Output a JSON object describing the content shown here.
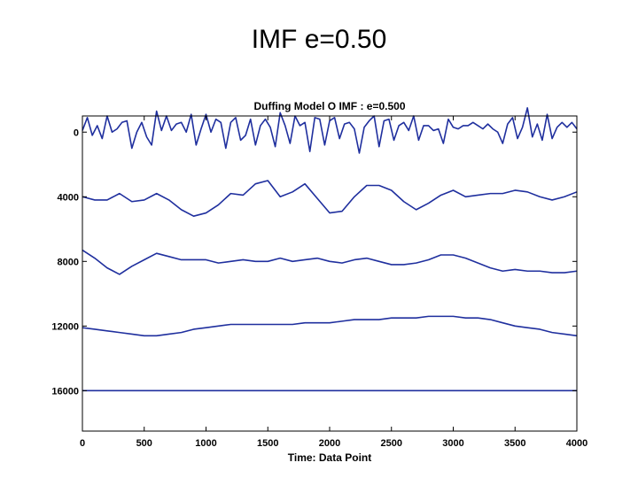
{
  "slide": {
    "title": "IMF e=0.50"
  },
  "chart_data": {
    "type": "line",
    "title": "Duffing Model O IMF : e=0.500",
    "xlabel": "Time: Data Point",
    "ylabel": "",
    "xlim": [
      0,
      4000
    ],
    "ylim": [
      -1000,
      18500
    ],
    "y_reversed": true,
    "x_ticks": [
      0,
      500,
      1000,
      1500,
      2000,
      2500,
      3000,
      3500,
      4000
    ],
    "y_ticks": [
      0,
      4000,
      8000,
      12000,
      16000
    ],
    "x_tick_labels": [
      "0",
      "500",
      "1000",
      "1500",
      "2000",
      "2500",
      "3000",
      "3500",
      "4000"
    ],
    "y_tick_labels": [
      "0",
      "4000",
      "8000",
      "12000",
      "16000"
    ],
    "grid": false,
    "line_color": "#1f2f9e",
    "series": [
      {
        "x": [
          0,
          40,
          80,
          120,
          160,
          200,
          240,
          280,
          320,
          360,
          400,
          440,
          480,
          520,
          560,
          600,
          640,
          680,
          720,
          760,
          800,
          840,
          880,
          920,
          960,
          1000,
          1040,
          1080,
          1120,
          1160,
          1200,
          1240,
          1280,
          1320,
          1360,
          1400,
          1440,
          1480,
          1520,
          1560,
          1600,
          1640,
          1680,
          1720,
          1760,
          1800,
          1840,
          1880,
          1920,
          1960,
          2000,
          2040,
          2080,
          2120,
          2160,
          2200,
          2240,
          2280,
          2320,
          2360,
          2400,
          2440,
          2480,
          2520,
          2560,
          2600,
          2640,
          2680,
          2720,
          2760,
          2800,
          2840,
          2880,
          2920,
          2960,
          3000,
          3040,
          3080,
          3120,
          3160,
          3200,
          3240,
          3280,
          3320,
          3360,
          3400,
          3440,
          3480,
          3520,
          3560,
          3600,
          3640,
          3680,
          3720,
          3760,
          3800,
          3840,
          3880,
          3920,
          3960,
          4000
        ],
        "y": [
          -100,
          -900,
          200,
          -400,
          400,
          -1000,
          0,
          -200,
          -600,
          -700,
          1000,
          0,
          -600,
          300,
          800,
          -1300,
          -100,
          -1000,
          -100,
          -500,
          -600,
          0,
          -1100,
          800,
          -200,
          -1100,
          0,
          -800,
          -600,
          1000,
          -600,
          -900,
          500,
          200,
          -800,
          800,
          -400,
          -800,
          -300,
          900,
          -1200,
          -400,
          700,
          -1000,
          -400,
          -600,
          1200,
          -900,
          -800,
          800,
          -700,
          -900,
          400,
          -500,
          -600,
          -200,
          1300,
          -300,
          -700,
          -1000,
          900,
          -700,
          -800,
          500,
          -400,
          -600,
          -100,
          -1000,
          500,
          -400,
          -400,
          -100,
          -200,
          700,
          -800,
          -300,
          -200,
          -400,
          -400,
          -600,
          -400,
          -200,
          -500,
          -200,
          0,
          700,
          -500,
          -900,
          400,
          -300,
          -1500,
          300,
          -500,
          500,
          -1100,
          400,
          -300,
          -600,
          -300,
          -600,
          -200
        ]
      },
      {
        "x": [
          0,
          100,
          200,
          300,
          400,
          500,
          600,
          700,
          800,
          900,
          1000,
          1100,
          1200,
          1300,
          1400,
          1500,
          1600,
          1700,
          1800,
          1900,
          2000,
          2100,
          2200,
          2300,
          2400,
          2500,
          2600,
          2700,
          2800,
          2900,
          3000,
          3100,
          3200,
          3300,
          3400,
          3500,
          3600,
          3700,
          3800,
          3900,
          4000
        ],
        "y": [
          4000,
          4200,
          4200,
          3800,
          4300,
          4200,
          3800,
          4200,
          4800,
          5200,
          5000,
          4500,
          3800,
          3900,
          3200,
          3000,
          4000,
          3700,
          3200,
          4100,
          5000,
          4900,
          4000,
          3300,
          3300,
          3600,
          4300,
          4800,
          4400,
          3900,
          3600,
          4000,
          3900,
          3800,
          3800,
          3600,
          3700,
          4000,
          4200,
          4000,
          3700
        ]
      },
      {
        "x": [
          0,
          100,
          200,
          300,
          400,
          500,
          600,
          700,
          800,
          900,
          1000,
          1100,
          1200,
          1300,
          1400,
          1500,
          1600,
          1700,
          1800,
          1900,
          2000,
          2100,
          2200,
          2300,
          2400,
          2500,
          2600,
          2700,
          2800,
          2900,
          3000,
          3100,
          3200,
          3300,
          3400,
          3500,
          3600,
          3700,
          3800,
          3900,
          4000
        ],
        "y": [
          7300,
          7800,
          8400,
          8800,
          8300,
          7900,
          7500,
          7700,
          7900,
          7900,
          7900,
          8100,
          8000,
          7900,
          8000,
          8000,
          7800,
          8000,
          7900,
          7800,
          8000,
          8100,
          7900,
          7800,
          8000,
          8200,
          8200,
          8100,
          7900,
          7600,
          7600,
          7800,
          8100,
          8400,
          8600,
          8500,
          8600,
          8600,
          8700,
          8700,
          8600
        ]
      },
      {
        "x": [
          0,
          100,
          200,
          300,
          400,
          500,
          600,
          700,
          800,
          900,
          1000,
          1100,
          1200,
          1300,
          1400,
          1500,
          1600,
          1700,
          1800,
          1900,
          2000,
          2100,
          2200,
          2300,
          2400,
          2500,
          2600,
          2700,
          2800,
          2900,
          3000,
          3100,
          3200,
          3300,
          3400,
          3500,
          3600,
          3700,
          3800,
          3900,
          4000
        ],
        "y": [
          12100,
          12200,
          12300,
          12400,
          12500,
          12600,
          12600,
          12500,
          12400,
          12200,
          12100,
          12000,
          11900,
          11900,
          11900,
          11900,
          11900,
          11900,
          11800,
          11800,
          11800,
          11700,
          11600,
          11600,
          11600,
          11500,
          11500,
          11500,
          11400,
          11400,
          11400,
          11500,
          11500,
          11600,
          11800,
          12000,
          12100,
          12200,
          12400,
          12500,
          12600
        ]
      },
      {
        "x": [
          0,
          4000
        ],
        "y": [
          16000,
          16000
        ]
      }
    ]
  }
}
